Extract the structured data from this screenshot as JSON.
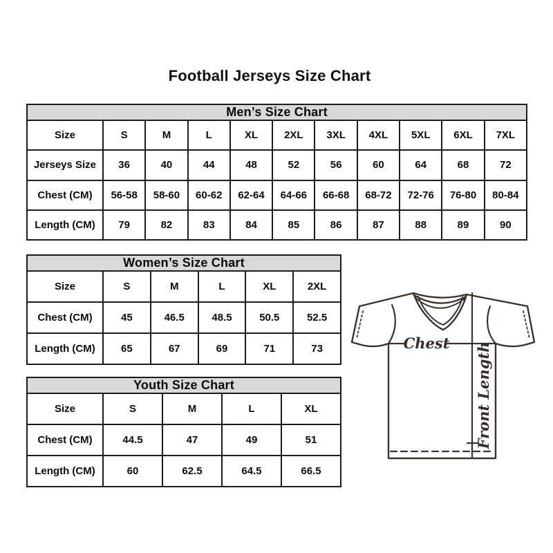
{
  "page_title": "Football Jerseys Size Chart",
  "colors": {
    "header_bg": "#d9d9d9",
    "table_border": "#1c1c1c",
    "text": "#000000",
    "diagram_stroke": "#3a322e"
  },
  "chart_data": [
    {
      "type": "table",
      "title": "Men’s Size Chart",
      "rows": [
        [
          "Size",
          "S",
          "M",
          "L",
          "XL",
          "2XL",
          "3XL",
          "4XL",
          "5XL",
          "6XL",
          "7XL"
        ],
        [
          "Jerseys Size",
          "36",
          "40",
          "44",
          "48",
          "52",
          "56",
          "60",
          "64",
          "68",
          "72"
        ],
        [
          "Chest (CM)",
          "56-58",
          "58-60",
          "60-62",
          "62-64",
          "64-66",
          "66-68",
          "68-72",
          "72-76",
          "76-80",
          "80-84"
        ],
        [
          "Length (CM)",
          "79",
          "82",
          "83",
          "84",
          "85",
          "86",
          "87",
          "88",
          "89",
          "90"
        ]
      ]
    },
    {
      "type": "table",
      "title": "Women’s Size Chart",
      "rows": [
        [
          "Size",
          "S",
          "M",
          "L",
          "XL",
          "2XL"
        ],
        [
          "Chest (CM)",
          "45",
          "46.5",
          "48.5",
          "50.5",
          "52.5"
        ],
        [
          "Length (CM)",
          "65",
          "67",
          "69",
          "71",
          "73"
        ]
      ]
    },
    {
      "type": "table",
      "title": "Youth Size Chart",
      "rows": [
        [
          "Size",
          "S",
          "M",
          "L",
          "XL"
        ],
        [
          "Chest (CM)",
          "44.5",
          "47",
          "49",
          "51"
        ],
        [
          "Length (CM)",
          "60",
          "62.5",
          "64.5",
          "66.5"
        ]
      ]
    }
  ],
  "diagram": {
    "chest_label": "Chest",
    "front_length_label": "Front Length"
  }
}
